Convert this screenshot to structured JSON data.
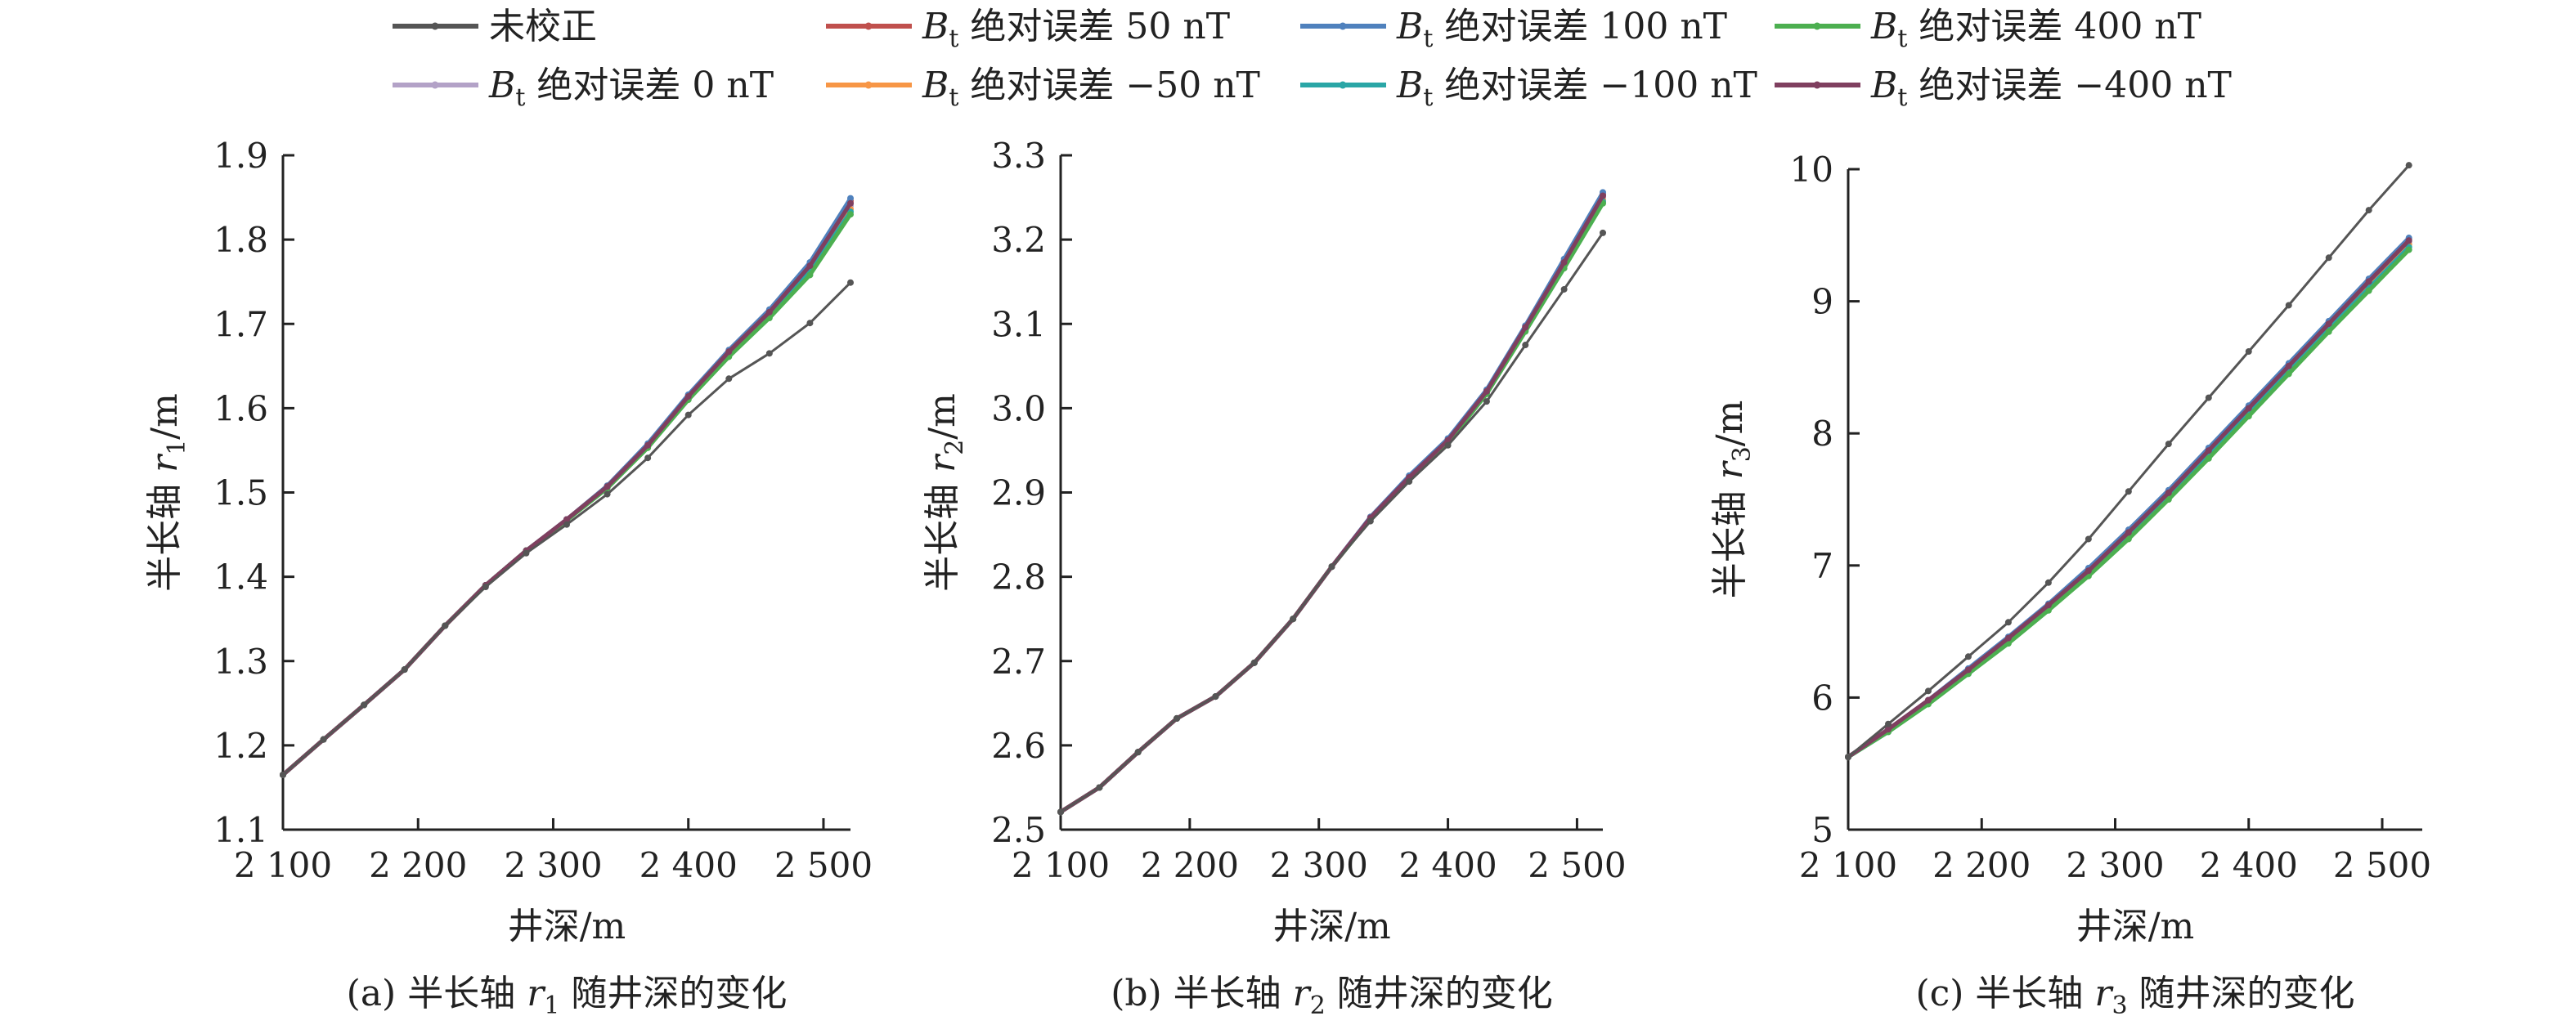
{
  "legend": [
    {
      "label_prefix": "",
      "label_sub": "",
      "label_rest": "未校正",
      "color": "#555555"
    },
    {
      "label_prefix": "B",
      "label_sub": "t",
      "label_rest": " 绝对误差 50 nT",
      "color": "#c0504d"
    },
    {
      "label_prefix": "B",
      "label_sub": "t",
      "label_rest": " 绝对误差 100 nT",
      "color": "#4f81bd"
    },
    {
      "label_prefix": "B",
      "label_sub": "t",
      "label_rest": " 绝对误差 400 nT",
      "color": "#4caf50"
    },
    {
      "label_prefix": "B",
      "label_sub": "t",
      "label_rest": " 绝对误差 0 nT",
      "color": "#b3a2c7"
    },
    {
      "label_prefix": "B",
      "label_sub": "t",
      "label_rest": " 绝对误差 −50 nT",
      "color": "#f79646"
    },
    {
      "label_prefix": "B",
      "label_sub": "t",
      "label_rest": " 绝对误差 −100 nT",
      "color": "#2aa6a6"
    },
    {
      "label_prefix": "B",
      "label_sub": "t",
      "label_rest": " 绝对误差 −400 nT",
      "color": "#7f3f5f"
    }
  ],
  "chart_data": [
    {
      "type": "line",
      "xlabel": "井深/m",
      "ylabel_main": "半长轴 ",
      "ylabel_var": "r",
      "ylabel_sub": "1",
      "ylabel_unit": "/m",
      "caption_prefix": "(a) 半长轴 ",
      "caption_var": "r",
      "caption_sub": "1",
      "caption_suffix": " 随井深的变化",
      "xlim": [
        2100,
        2520
      ],
      "ylim": [
        1.1,
        1.9
      ],
      "xticks": [
        2100,
        2200,
        2300,
        2400,
        2500
      ],
      "xtick_labels": [
        "2 100",
        "2 200",
        "2 300",
        "2 400",
        "2 500"
      ],
      "yticks": [
        1.1,
        1.2,
        1.3,
        1.4,
        1.5,
        1.6,
        1.7,
        1.8,
        1.9
      ],
      "ytick_labels": [
        "1.1",
        "1.2",
        "1.3",
        "1.4",
        "1.5",
        "1.6",
        "1.7",
        "1.8",
        "1.9"
      ],
      "x": [
        2100,
        2130,
        2160,
        2190,
        2220,
        2250,
        2280,
        2310,
        2340,
        2370,
        2400,
        2430,
        2460,
        2490,
        2520
      ],
      "series": [
        {
          "name": "未校正",
          "values": [
            1.165,
            1.207,
            1.248,
            1.29,
            1.342,
            1.388,
            1.428,
            1.462,
            1.498,
            1.541,
            1.592,
            1.635,
            1.665,
            1.701,
            1.749
          ]
        },
        {
          "name": "Bt 绝对误差 0 nT",
          "values": [
            1.165,
            1.207,
            1.248,
            1.29,
            1.342,
            1.39,
            1.431,
            1.468,
            1.507,
            1.556,
            1.613,
            1.666,
            1.713,
            1.767,
            1.84
          ]
        },
        {
          "name": "Bt 绝对误差 50 nT",
          "values": [
            1.165,
            1.207,
            1.248,
            1.29,
            1.342,
            1.39,
            1.431,
            1.468,
            1.508,
            1.557,
            1.615,
            1.668,
            1.716,
            1.771,
            1.846
          ]
        },
        {
          "name": "Bt 绝对误差 −50 nT",
          "values": [
            1.165,
            1.207,
            1.248,
            1.29,
            1.342,
            1.39,
            1.431,
            1.467,
            1.506,
            1.555,
            1.612,
            1.664,
            1.711,
            1.764,
            1.836
          ]
        },
        {
          "name": "Bt 绝对误差 100 nT",
          "values": [
            1.165,
            1.207,
            1.248,
            1.29,
            1.342,
            1.39,
            1.431,
            1.468,
            1.508,
            1.558,
            1.616,
            1.669,
            1.717,
            1.773,
            1.849
          ]
        },
        {
          "name": "Bt 绝对误差 −100 nT",
          "values": [
            1.165,
            1.207,
            1.248,
            1.29,
            1.342,
            1.39,
            1.431,
            1.467,
            1.506,
            1.554,
            1.611,
            1.663,
            1.709,
            1.762,
            1.833
          ]
        },
        {
          "name": "Bt 绝对误差 400 nT",
          "values": [
            1.165,
            1.207,
            1.248,
            1.29,
            1.342,
            1.39,
            1.431,
            1.467,
            1.505,
            1.553,
            1.61,
            1.661,
            1.707,
            1.758,
            1.83
          ]
        },
        {
          "name": "Bt 绝对误差 −400 nT",
          "values": [
            1.165,
            1.207,
            1.248,
            1.29,
            1.342,
            1.39,
            1.431,
            1.468,
            1.507,
            1.556,
            1.614,
            1.667,
            1.714,
            1.769,
            1.843
          ]
        }
      ]
    },
    {
      "type": "line",
      "xlabel": "井深/m",
      "ylabel_main": "半长轴 ",
      "ylabel_var": "r",
      "ylabel_sub": "2",
      "ylabel_unit": "/m",
      "caption_prefix": "(b) 半长轴 ",
      "caption_var": "r",
      "caption_sub": "2",
      "caption_suffix": " 随井深的变化",
      "xlim": [
        2100,
        2520
      ],
      "ylim": [
        2.5,
        3.3
      ],
      "xticks": [
        2100,
        2200,
        2300,
        2400,
        2500
      ],
      "xtick_labels": [
        "2 100",
        "2 200",
        "2 300",
        "2 400",
        "2 500"
      ],
      "yticks": [
        2.5,
        2.6,
        2.7,
        2.8,
        2.9,
        3.0,
        3.1,
        3.2,
        3.3
      ],
      "ytick_labels": [
        "2.5",
        "2.6",
        "2.7",
        "2.8",
        "2.9",
        "3.0",
        "3.1",
        "3.2",
        "3.3"
      ],
      "x": [
        2100,
        2130,
        2160,
        2190,
        2220,
        2250,
        2280,
        2310,
        2340,
        2370,
        2400,
        2430,
        2460,
        2490,
        2520
      ],
      "series": [
        {
          "name": "未校正",
          "values": [
            2.521,
            2.55,
            2.592,
            2.632,
            2.658,
            2.698,
            2.75,
            2.812,
            2.866,
            2.913,
            2.956,
            3.008,
            3.075,
            3.141,
            3.208
          ]
        },
        {
          "name": "Bt 绝对误差 0 nT",
          "values": [
            2.521,
            2.55,
            2.592,
            2.632,
            2.658,
            2.698,
            2.75,
            2.812,
            2.87,
            2.918,
            2.962,
            3.02,
            3.095,
            3.172,
            3.25
          ]
        },
        {
          "name": "Bt 绝对误差 50 nT",
          "values": [
            2.521,
            2.55,
            2.592,
            2.632,
            2.658,
            2.698,
            2.75,
            2.812,
            2.871,
            2.919,
            2.963,
            3.021,
            3.097,
            3.175,
            3.254
          ]
        },
        {
          "name": "Bt 绝对误差 −50 nT",
          "values": [
            2.521,
            2.55,
            2.592,
            2.632,
            2.658,
            2.698,
            2.75,
            2.812,
            2.869,
            2.917,
            2.961,
            3.019,
            3.093,
            3.17,
            3.247
          ]
        },
        {
          "name": "Bt 绝对误差 100 nT",
          "values": [
            2.521,
            2.55,
            2.592,
            2.632,
            2.658,
            2.698,
            2.75,
            2.812,
            2.871,
            2.92,
            2.964,
            3.022,
            3.098,
            3.177,
            3.256
          ]
        },
        {
          "name": "Bt 绝对误差 −100 nT",
          "values": [
            2.521,
            2.55,
            2.592,
            2.632,
            2.658,
            2.698,
            2.75,
            2.812,
            2.869,
            2.916,
            2.96,
            3.018,
            3.092,
            3.168,
            3.245
          ]
        },
        {
          "name": "Bt 绝对误差 400 nT",
          "values": [
            2.521,
            2.55,
            2.592,
            2.632,
            2.658,
            2.698,
            2.75,
            2.812,
            2.869,
            2.916,
            2.959,
            3.017,
            3.091,
            3.166,
            3.243
          ]
        },
        {
          "name": "Bt 绝对误差 −400 nT",
          "values": [
            2.521,
            2.55,
            2.592,
            2.632,
            2.658,
            2.698,
            2.75,
            2.812,
            2.87,
            2.918,
            2.962,
            3.02,
            3.096,
            3.173,
            3.252
          ]
        }
      ]
    },
    {
      "type": "line",
      "xlabel": "井深/m",
      "ylabel_main": "半长轴 ",
      "ylabel_var": "r",
      "ylabel_sub": "3",
      "ylabel_unit": "/m",
      "caption_prefix": "(c) 半长轴 ",
      "caption_var": "r",
      "caption_sub": "3",
      "caption_suffix": " 随井深的变化",
      "xlim": [
        2100,
        2530
      ],
      "ylim": [
        5,
        10
      ],
      "xticks": [
        2100,
        2200,
        2300,
        2400,
        2500
      ],
      "xtick_labels": [
        "2 100",
        "2 200",
        "2 300",
        "2 400",
        "2 500"
      ],
      "yticks": [
        5,
        6,
        7,
        8,
        9,
        10
      ],
      "ytick_labels": [
        "5",
        "6",
        "7",
        "8",
        "9",
        "10"
      ],
      "x": [
        2100,
        2130,
        2160,
        2190,
        2220,
        2250,
        2280,
        2310,
        2340,
        2370,
        2400,
        2430,
        2460,
        2490,
        2520
      ],
      "series": [
        {
          "name": "未校正",
          "values": [
            5.55,
            5.8,
            6.05,
            6.31,
            6.57,
            6.87,
            7.2,
            7.56,
            7.92,
            8.27,
            8.62,
            8.97,
            9.33,
            9.69,
            10.03
          ]
        },
        {
          "name": "Bt 绝对误差 0 nT",
          "values": [
            5.55,
            5.75,
            5.97,
            6.2,
            6.44,
            6.69,
            6.95,
            7.24,
            7.54,
            7.86,
            8.18,
            8.5,
            8.82,
            9.14,
            9.45
          ]
        },
        {
          "name": "Bt 绝对误差 50 nT",
          "values": [
            5.55,
            5.76,
            5.98,
            6.21,
            6.45,
            6.7,
            6.97,
            7.26,
            7.56,
            7.88,
            8.2,
            8.52,
            8.84,
            9.16,
            9.47
          ]
        },
        {
          "name": "Bt 绝对误差 −50 nT",
          "values": [
            5.55,
            5.75,
            5.96,
            6.19,
            6.43,
            6.68,
            6.94,
            7.23,
            7.53,
            7.84,
            8.16,
            8.48,
            8.8,
            9.12,
            9.43
          ]
        },
        {
          "name": "Bt 绝对误差 100 nT",
          "values": [
            5.55,
            5.76,
            5.98,
            6.22,
            6.46,
            6.71,
            6.98,
            7.27,
            7.57,
            7.89,
            8.21,
            8.53,
            8.85,
            9.17,
            9.48
          ]
        },
        {
          "name": "Bt 绝对误差 −100 nT",
          "values": [
            5.55,
            5.74,
            5.96,
            6.18,
            6.42,
            6.67,
            6.93,
            7.22,
            7.52,
            7.83,
            8.15,
            8.47,
            8.79,
            9.1,
            9.41
          ]
        },
        {
          "name": "Bt 绝对误差 400 nT",
          "values": [
            5.55,
            5.74,
            5.95,
            6.18,
            6.41,
            6.66,
            6.92,
            7.2,
            7.5,
            7.81,
            8.13,
            8.45,
            8.77,
            9.08,
            9.39
          ]
        },
        {
          "name": "Bt 绝对误差 −400 nT",
          "values": [
            5.55,
            5.76,
            5.98,
            6.21,
            6.45,
            6.7,
            6.96,
            7.25,
            7.55,
            7.87,
            8.19,
            8.51,
            8.83,
            9.15,
            9.46
          ]
        }
      ]
    }
  ]
}
